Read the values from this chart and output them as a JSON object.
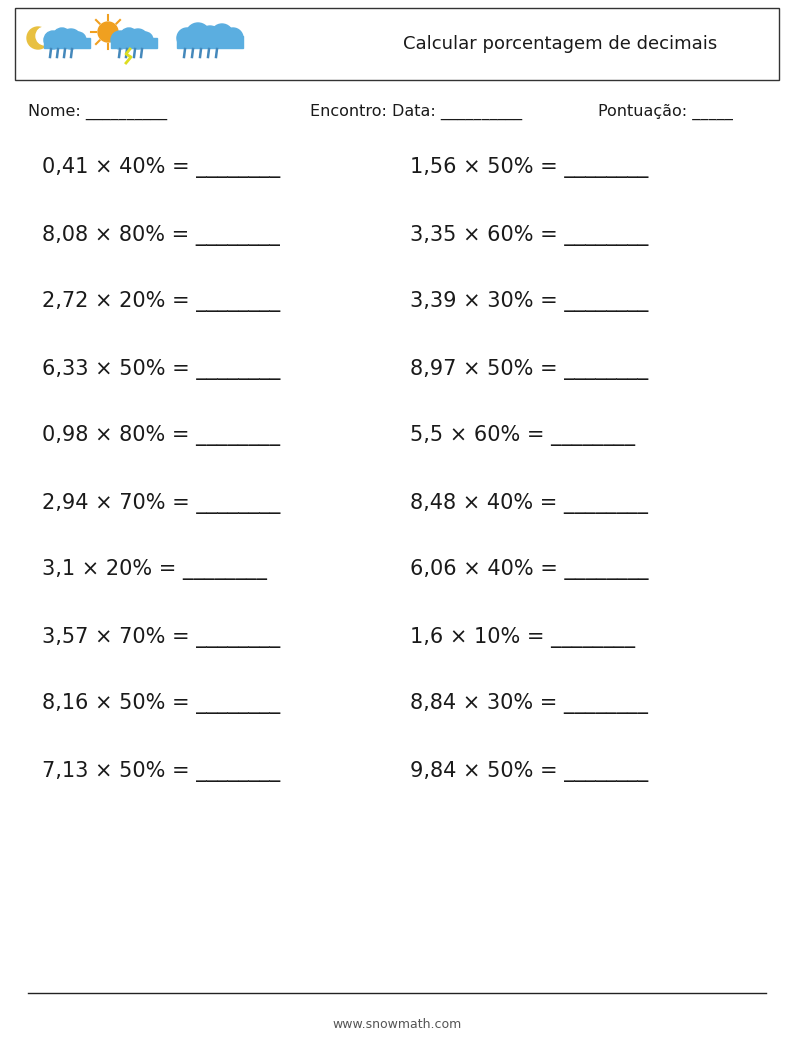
{
  "title": "Calcular porcentagem de decimais",
  "header_label_nome": "Nome: __________",
  "header_label_encontro": "Encontro: Data: __________",
  "header_label_pontuacao": "Pontuação: _____",
  "left_problems": [
    "0,41 × 40% = ________",
    "8,08 × 80% = ________",
    "2,72 × 20% = ________",
    "6,33 × 50% = ________",
    "0,98 × 80% = ________",
    "2,94 × 70% = ________",
    "3,1 × 20% = ________",
    "3,57 × 70% = ________",
    "8,16 × 50% = ________",
    "7,13 × 50% = ________"
  ],
  "right_problems": [
    "1,56 × 50% = ________",
    "3,35 × 60% = ________",
    "3,39 × 30% = ________",
    "8,97 × 50% = ________",
    "5,5 × 60% = ________",
    "8,48 × 40% = ________",
    "6,06 × 40% = ________",
    "1,6 × 10% = ________",
    "8,84 × 30% = ________",
    "9,84 × 50% = ________"
  ],
  "footer_url": "www.snowmath.com",
  "bg_color": "#ffffff",
  "text_color": "#1a1a1a",
  "header_box_color": "#333333",
  "sky_blue": "#5baee0",
  "moon_yellow": "#e8c040",
  "sun_orange": "#f0a020",
  "rain_blue": "#4488bb",
  "font_size_problems": 15,
  "font_size_header": 11.5,
  "font_size_title": 13,
  "font_size_footer": 9
}
